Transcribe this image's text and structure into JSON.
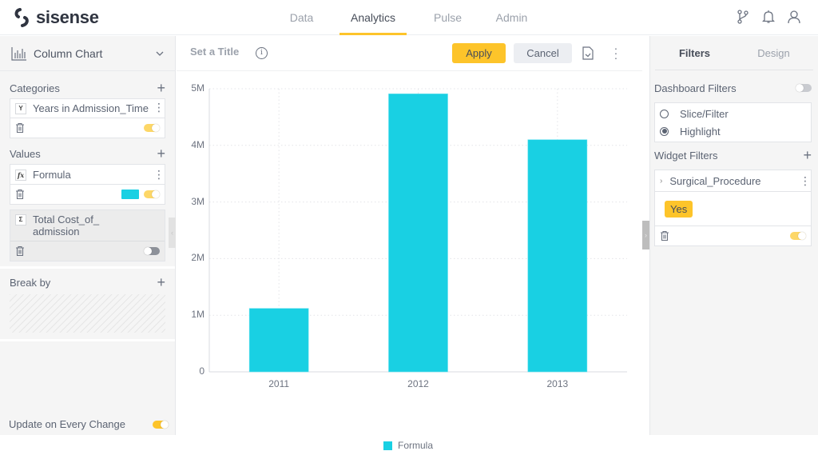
{
  "app": {
    "brand": "sisense"
  },
  "nav": {
    "items": [
      {
        "label": "Data",
        "active": false
      },
      {
        "label": "Analytics",
        "active": true
      },
      {
        "label": "Pulse",
        "active": false
      },
      {
        "label": "Admin",
        "active": false
      }
    ],
    "icons": [
      "branch-icon",
      "bell-icon",
      "user-icon"
    ]
  },
  "left_panel": {
    "chart_type": "Column Chart",
    "categories": {
      "header": "Categories",
      "items": [
        {
          "badge": "Y",
          "title": "Years in Admission_Time",
          "enabled": true
        }
      ]
    },
    "values": {
      "header": "Values",
      "items": [
        {
          "badge": "fx",
          "title": "Formula",
          "color": "#19d0e3",
          "enabled": true
        },
        {
          "badge": "Σ",
          "title": "Total Cost_of_admission",
          "enabled": false
        }
      ]
    },
    "break_by": {
      "header": "Break by"
    },
    "update_on_every_change": {
      "label": "Update on Every Change",
      "enabled": true
    }
  },
  "toolbar": {
    "title_placeholder": "Set a Title",
    "info_glyph": "i",
    "apply_label": "Apply",
    "cancel_label": "Cancel"
  },
  "right_panel": {
    "tabs": [
      {
        "label": "Filters",
        "active": true
      },
      {
        "label": "Design",
        "active": false
      }
    ],
    "dashboard_filters": {
      "header": "Dashboard Filters",
      "enabled": false,
      "options": [
        {
          "label": "Slice/Filter",
          "checked": false
        },
        {
          "label": "Highlight",
          "checked": true
        }
      ]
    },
    "widget_filters": {
      "header": "Widget Filters",
      "items": [
        {
          "field": "Surgical_Procedure",
          "values": [
            "Yes"
          ],
          "enabled": true
        }
      ]
    }
  },
  "colors": {
    "accent": "#fdc42a",
    "series": "#19d0e3"
  },
  "chart_data": {
    "type": "bar",
    "title": "",
    "categories": [
      "2011",
      "2012",
      "2013"
    ],
    "series": [
      {
        "name": "Formula",
        "color": "#19d0e3",
        "values": [
          1120000,
          4910000,
          4100000
        ]
      }
    ],
    "xlabel": "",
    "ylabel": "",
    "ylim": [
      0,
      5000000
    ],
    "yticks": [
      "0",
      "1M",
      "2M",
      "3M",
      "4M",
      "5M"
    ],
    "grid": true,
    "legend_position": "bottom"
  }
}
